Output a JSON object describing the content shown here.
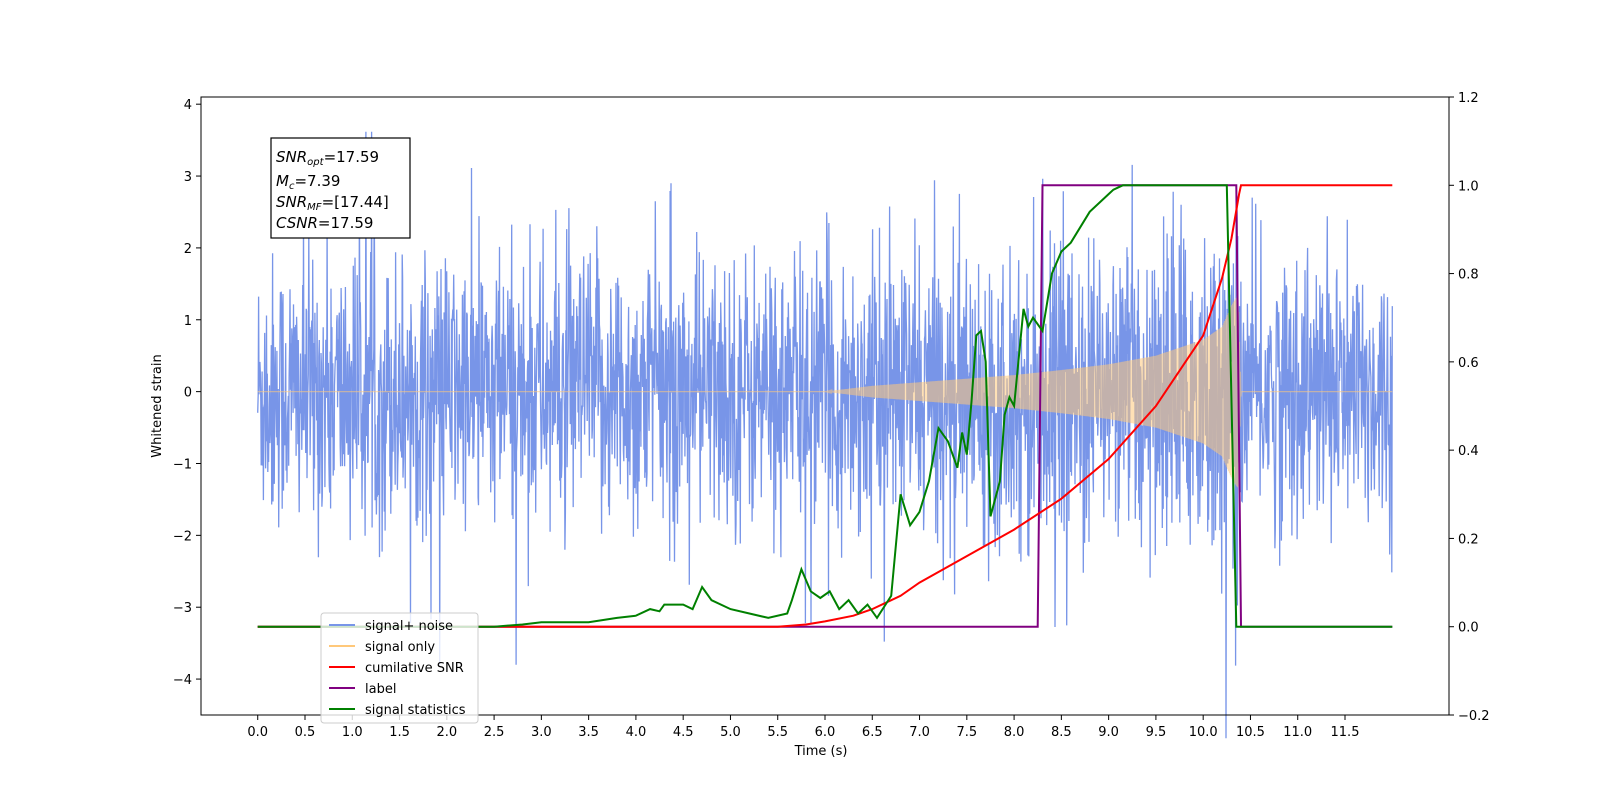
{
  "chart_data": {
    "type": "line",
    "xlabel": "Time (s)",
    "ylabel_left": "Whitened strain",
    "ylabel_right": "",
    "xlim": [
      -0.6,
      12.6
    ],
    "ylim_left": [
      -4.5,
      4.1
    ],
    "ylim_right": [
      -0.2,
      1.2
    ],
    "grid": false,
    "legend_placement": "lower-left",
    "x_ticks": [
      "0.0",
      "0.5",
      "1.0",
      "1.5",
      "2.0",
      "2.5",
      "3.0",
      "3.5",
      "4.0",
      "4.5",
      "5.0",
      "5.5",
      "6.0",
      "6.5",
      "7.0",
      "7.5",
      "8.0",
      "8.5",
      "9.0",
      "9.5",
      "10.0",
      "10.5",
      "11.0",
      "11.5"
    ],
    "y_ticks_left": [
      "4",
      "3",
      "2",
      "1",
      "0",
      "−1",
      "−2",
      "−3",
      "−4"
    ],
    "y_ticks_right": [
      "1.2",
      "1.0",
      "0.8",
      "0.6",
      "0.4",
      "0.2",
      "0.0",
      "−0.2"
    ],
    "annotation": {
      "line1_sym": "SNR",
      "line1_sub": "opt",
      "line1_val": "=17.59",
      "line2_sym": "M",
      "line2_sub": "c",
      "line2_val": "=7.39",
      "line3_sym": "SNR",
      "line3_sub": "MF",
      "line3_val": "=[17.44]",
      "line4_sym": "CSNR",
      "line4_val": "=17.59"
    },
    "series": [
      {
        "name": "signal+ noise",
        "color": "#7895e8",
        "axis": "left",
        "x_range": [
          0,
          12.0
        ],
        "amplitude_std": 0.95
      },
      {
        "name": "signal only",
        "color": "#ffc87a",
        "axis": "left",
        "envelope": {
          "t": [
            6.0,
            6.5,
            7.0,
            7.5,
            8.0,
            8.5,
            9.0,
            9.5,
            10.0,
            10.2,
            10.3,
            10.37,
            10.4
          ],
          "a": [
            0.0,
            0.08,
            0.13,
            0.18,
            0.23,
            0.3,
            0.38,
            0.5,
            0.72,
            0.9,
            1.2,
            1.35,
            0.0
          ]
        }
      },
      {
        "name": "cumilative SNR",
        "color": "#ff0000",
        "axis": "right",
        "x": [
          0,
          5.5,
          5.8,
          6.0,
          6.3,
          6.5,
          6.8,
          7.0,
          7.5,
          8.0,
          8.5,
          9.0,
          9.5,
          10.0,
          10.2,
          10.3,
          10.38,
          10.4,
          12.0
        ],
        "y": [
          0,
          0,
          0.005,
          0.012,
          0.025,
          0.04,
          0.07,
          0.1,
          0.16,
          0.22,
          0.29,
          0.38,
          0.5,
          0.66,
          0.79,
          0.88,
          0.98,
          1.0,
          1.0
        ]
      },
      {
        "name": "label",
        "color": "#800080",
        "axis": "right",
        "x": [
          0,
          8.25,
          8.3,
          10.35,
          10.4,
          12.0
        ],
        "y": [
          0,
          0,
          1.0,
          1.0,
          0.0,
          0.0
        ]
      },
      {
        "name": "signal statistics",
        "color": "#008000",
        "axis": "right",
        "x": [
          0,
          2.5,
          2.8,
          3.0,
          3.5,
          3.8,
          4.0,
          4.15,
          4.25,
          4.3,
          4.5,
          4.6,
          4.7,
          4.8,
          5.0,
          5.2,
          5.4,
          5.6,
          5.65,
          5.75,
          5.85,
          5.95,
          6.05,
          6.15,
          6.25,
          6.35,
          6.45,
          6.55,
          6.7,
          6.8,
          6.9,
          7.0,
          7.1,
          7.2,
          7.3,
          7.4,
          7.45,
          7.5,
          7.55,
          7.6,
          7.65,
          7.7,
          7.75,
          7.8,
          7.85,
          7.9,
          7.95,
          8.0,
          8.1,
          8.15,
          8.2,
          8.3,
          8.4,
          8.5,
          8.6,
          8.8,
          9.0,
          9.05,
          9.15,
          9.3,
          9.5,
          10.0,
          10.25,
          10.28,
          10.35,
          10.4,
          11.0,
          12.0
        ],
        "y": [
          0,
          0,
          0.005,
          0.01,
          0.01,
          0.02,
          0.025,
          0.04,
          0.035,
          0.05,
          0.05,
          0.04,
          0.09,
          0.06,
          0.04,
          0.03,
          0.02,
          0.03,
          0.06,
          0.13,
          0.08,
          0.065,
          0.08,
          0.04,
          0.06,
          0.03,
          0.05,
          0.02,
          0.07,
          0.3,
          0.23,
          0.26,
          0.33,
          0.45,
          0.42,
          0.36,
          0.44,
          0.39,
          0.51,
          0.66,
          0.67,
          0.6,
          0.25,
          0.29,
          0.33,
          0.48,
          0.52,
          0.5,
          0.72,
          0.68,
          0.7,
          0.67,
          0.8,
          0.85,
          0.87,
          0.94,
          0.98,
          0.99,
          1.0,
          1.0,
          1.0,
          1.0,
          1.0,
          0.7,
          0.0,
          0.0,
          0.0,
          0.0
        ]
      }
    ]
  }
}
